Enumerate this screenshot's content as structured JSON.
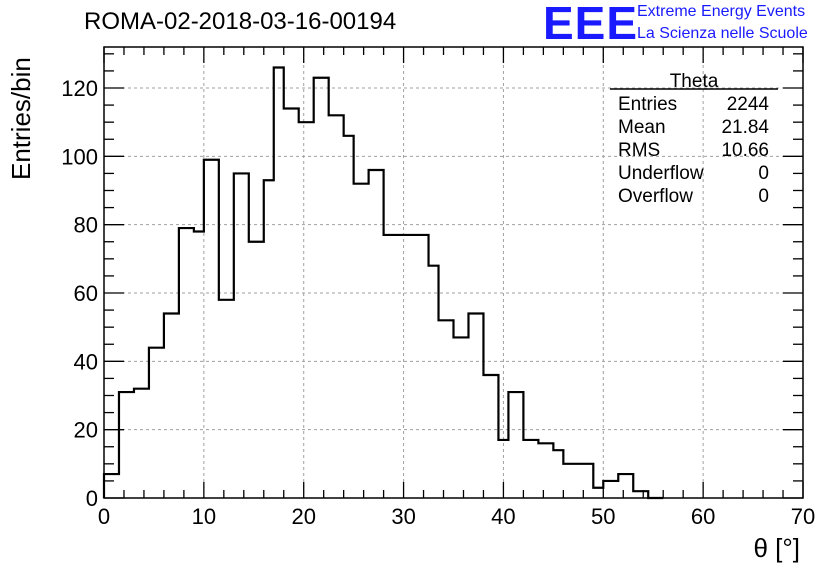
{
  "header": {
    "run_title": "ROMA-02-2018-03-16-00194",
    "logo_mark": "EEE",
    "logo_line1": "Extreme Energy Events",
    "logo_line2": "La Scienza nelle Scuole"
  },
  "stats_box": {
    "title": "Theta",
    "rows": [
      {
        "label": "Entries",
        "value": "2244"
      },
      {
        "label": "Mean",
        "value": "21.84"
      },
      {
        "label": "RMS",
        "value": "10.66"
      },
      {
        "label": "Underflow",
        "value": "0"
      },
      {
        "label": "Overflow",
        "value": "0"
      }
    ]
  },
  "colors": {
    "line": "#000000",
    "grid": "#a0a0a0",
    "logo": "#1a1aff"
  },
  "chart_data": {
    "type": "histogram",
    "title": "ROMA-02-2018-03-16-00194",
    "xlabel": "θ [°]",
    "ylabel": "Entries/bin",
    "xlim": [
      0,
      70
    ],
    "ylim": [
      0,
      132
    ],
    "xticks": [
      0,
      10,
      20,
      30,
      40,
      50,
      60,
      70
    ],
    "yticks": [
      0,
      20,
      40,
      60,
      80,
      100,
      120
    ],
    "grid": true,
    "bin_edges": [
      0,
      1.5,
      3,
      4.5,
      6,
      7.5,
      9,
      10,
      11.5,
      13,
      14.5,
      16,
      17,
      18,
      19.5,
      21,
      22.5,
      24,
      25,
      26.5,
      28,
      29.5,
      31,
      32.5,
      33.5,
      35,
      36.5,
      38,
      39.5,
      40.5,
      42,
      43.5,
      45,
      46,
      47.5,
      49,
      50,
      51.5,
      53,
      54.5,
      56
    ],
    "values": [
      7,
      31,
      32,
      44,
      54,
      79,
      78,
      99,
      58,
      95,
      75,
      93,
      126,
      114,
      110,
      123,
      112,
      106,
      92,
      96,
      77,
      77,
      77,
      68,
      52,
      47,
      54,
      36,
      17,
      31,
      17,
      16,
      14,
      10,
      10,
      3,
      5,
      7,
      2,
      0
    ]
  }
}
